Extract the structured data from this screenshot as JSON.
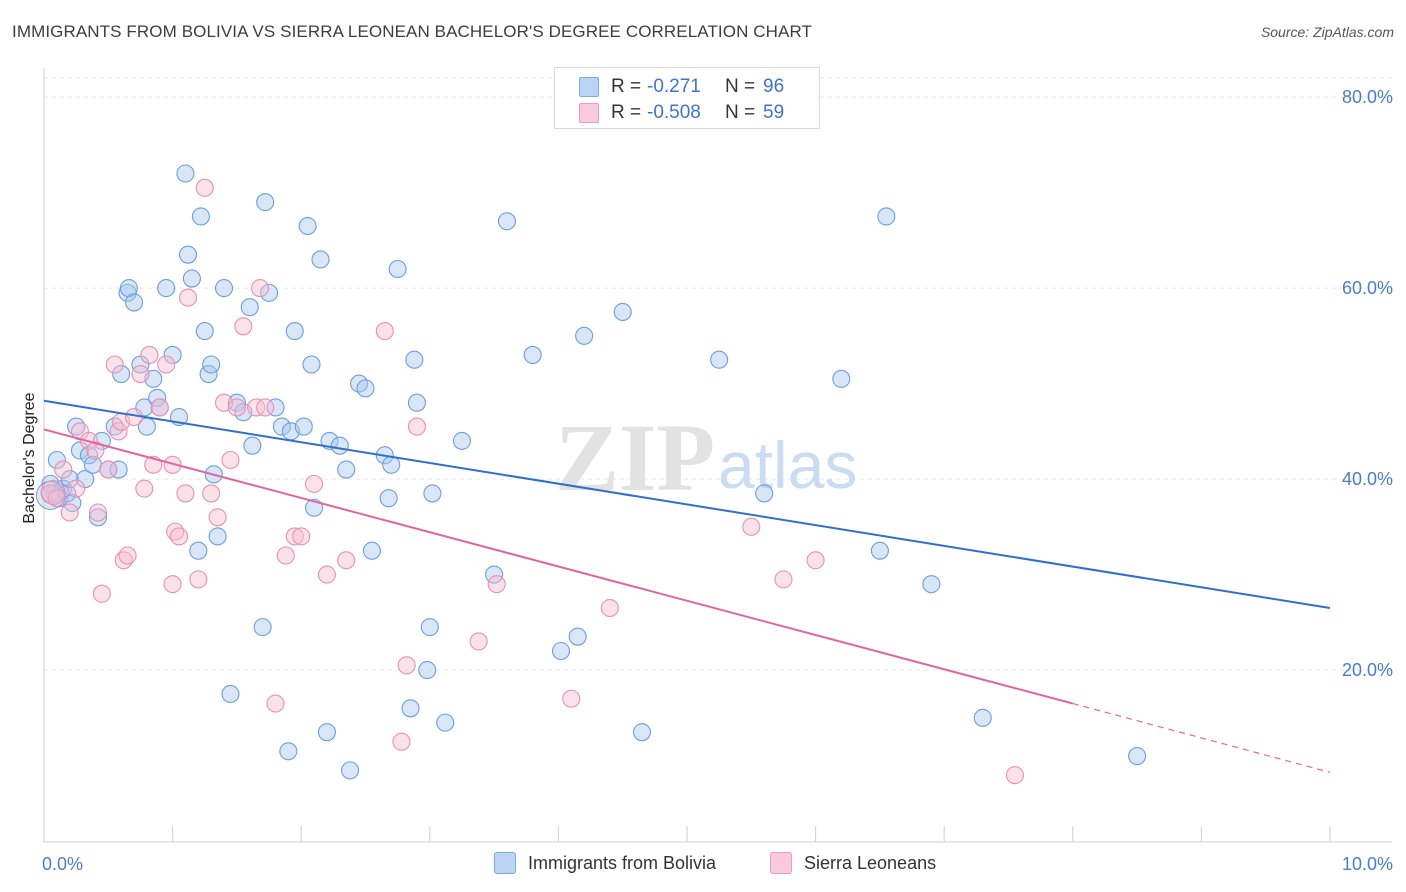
{
  "title": "IMMIGRANTS FROM BOLIVIA VS SIERRA LEONEAN BACHELOR'S DEGREE CORRELATION CHART",
  "source": "Source: ZipAtlas.com",
  "watermark_zip": "ZIP",
  "watermark_atlas": "atlas",
  "colors": {
    "blue_fill": "#a9c8f0",
    "blue_stroke": "#6b9ee0",
    "blue_line": "#2f6fce",
    "pink_fill": "#f7bcd0",
    "pink_stroke": "#e890b0",
    "pink_line": "#e0679a",
    "label_blue": "#4a7cc9"
  },
  "legend": {
    "rows": [
      {
        "r_label": "R =",
        "r_value": "-0.271",
        "n_label": "N =",
        "n_value": "96"
      },
      {
        "r_label": "R =",
        "r_value": "-0.508",
        "n_label": "N =",
        "n_value": "59"
      }
    ]
  },
  "bottom_legend": {
    "series1": "Immigrants from Bolivia",
    "series2": "Sierra Leoneans"
  },
  "chart_data": {
    "type": "scatter",
    "title": "IMMIGRANTS FROM BOLIVIA VS SIERRA LEONEAN BACHELOR'S DEGREE CORRELATION CHART",
    "xlabel": "",
    "ylabel": "Bachelor's Degree",
    "xlim": [
      0,
      10
    ],
    "ylim": [
      2,
      82
    ],
    "x_tick_labels": [
      "0.0%",
      "10.0%"
    ],
    "y_tick_labels": [
      "20.0%",
      "40.0%",
      "60.0%",
      "80.0%"
    ],
    "y_ticks": [
      20,
      40,
      60,
      80
    ],
    "series": [
      {
        "name": "Immigrants from Bolivia",
        "trend": {
          "x": [
            0,
            10
          ],
          "y": [
            48.2,
            26.5
          ]
        },
        "points": [
          [
            0.05,
            39.5
          ],
          [
            0.08,
            38.5
          ],
          [
            0.1,
            42.0
          ],
          [
            0.12,
            38.0
          ],
          [
            0.15,
            39.0
          ],
          [
            0.18,
            38.5
          ],
          [
            0.2,
            40.0
          ],
          [
            0.22,
            37.5
          ],
          [
            0.25,
            45.5
          ],
          [
            0.28,
            43.0
          ],
          [
            0.32,
            40.0
          ],
          [
            0.35,
            42.5
          ],
          [
            0.38,
            41.5
          ],
          [
            0.42,
            36.0
          ],
          [
            0.45,
            44.0
          ],
          [
            0.5,
            41.0
          ],
          [
            0.55,
            45.5
          ],
          [
            0.58,
            41.0
          ],
          [
            0.6,
            51.0
          ],
          [
            0.65,
            59.5
          ],
          [
            0.66,
            60.0
          ],
          [
            0.7,
            58.5
          ],
          [
            0.75,
            52.0
          ],
          [
            0.78,
            47.5
          ],
          [
            0.8,
            45.5
          ],
          [
            0.85,
            50.5
          ],
          [
            0.88,
            48.5
          ],
          [
            0.9,
            47.5
          ],
          [
            0.95,
            60.0
          ],
          [
            1.0,
            53.0
          ],
          [
            1.05,
            46.5
          ],
          [
            1.1,
            72.0
          ],
          [
            1.12,
            63.5
          ],
          [
            1.15,
            61.0
          ],
          [
            1.2,
            32.5
          ],
          [
            1.22,
            67.5
          ],
          [
            1.25,
            55.5
          ],
          [
            1.28,
            51.0
          ],
          [
            1.3,
            52.0
          ],
          [
            1.32,
            40.5
          ],
          [
            1.35,
            34.0
          ],
          [
            1.4,
            60.0
          ],
          [
            1.45,
            17.5
          ],
          [
            1.5,
            48.0
          ],
          [
            1.55,
            47.0
          ],
          [
            1.6,
            58.0
          ],
          [
            1.62,
            43.5
          ],
          [
            1.7,
            24.5
          ],
          [
            1.72,
            69.0
          ],
          [
            1.75,
            59.5
          ],
          [
            1.8,
            47.5
          ],
          [
            1.85,
            45.5
          ],
          [
            1.9,
            11.5
          ],
          [
            1.92,
            45.0
          ],
          [
            1.95,
            55.5
          ],
          [
            2.02,
            45.5
          ],
          [
            2.05,
            66.5
          ],
          [
            2.08,
            52.0
          ],
          [
            2.1,
            37.0
          ],
          [
            2.15,
            63.0
          ],
          [
            2.2,
            13.5
          ],
          [
            2.22,
            44.0
          ],
          [
            2.3,
            43.5
          ],
          [
            2.35,
            41.0
          ],
          [
            2.38,
            9.5
          ],
          [
            2.45,
            50.0
          ],
          [
            2.5,
            49.5
          ],
          [
            2.55,
            32.5
          ],
          [
            2.65,
            42.5
          ],
          [
            2.68,
            38.0
          ],
          [
            2.7,
            41.5
          ],
          [
            2.75,
            62.0
          ],
          [
            2.85,
            16.0
          ],
          [
            2.88,
            52.5
          ],
          [
            2.9,
            48.0
          ],
          [
            2.98,
            20.0
          ],
          [
            3.0,
            24.5
          ],
          [
            3.02,
            38.5
          ],
          [
            3.12,
            14.5
          ],
          [
            3.25,
            44.0
          ],
          [
            3.5,
            30.0
          ],
          [
            3.6,
            67.0
          ],
          [
            3.8,
            53.0
          ],
          [
            4.02,
            22.0
          ],
          [
            4.15,
            23.5
          ],
          [
            4.2,
            55.0
          ],
          [
            4.5,
            57.5
          ],
          [
            4.65,
            13.5
          ],
          [
            5.25,
            52.5
          ],
          [
            5.6,
            38.5
          ],
          [
            6.2,
            50.5
          ],
          [
            6.5,
            32.5
          ],
          [
            6.55,
            67.5
          ],
          [
            6.9,
            29.0
          ],
          [
            7.3,
            15.0
          ],
          [
            8.5,
            11.0
          ]
        ]
      },
      {
        "name": "Sierra Leoneans",
        "trend": {
          "x": [
            0,
            8.0
          ],
          "y": [
            45.2,
            16.5
          ]
        },
        "trend_dashed": {
          "x": [
            8.0,
            10
          ],
          "y": [
            16.5,
            9.3
          ]
        },
        "points": [
          [
            0.05,
            38.5
          ],
          [
            0.1,
            38.0
          ],
          [
            0.15,
            41.0
          ],
          [
            0.2,
            36.5
          ],
          [
            0.25,
            39.0
          ],
          [
            0.28,
            45.0
          ],
          [
            0.35,
            44.0
          ],
          [
            0.4,
            43.0
          ],
          [
            0.42,
            36.5
          ],
          [
            0.45,
            28.0
          ],
          [
            0.5,
            41.0
          ],
          [
            0.55,
            52.0
          ],
          [
            0.58,
            45.0
          ],
          [
            0.6,
            46.0
          ],
          [
            0.62,
            31.5
          ],
          [
            0.7,
            46.5
          ],
          [
            0.75,
            51.0
          ],
          [
            0.78,
            39.0
          ],
          [
            0.82,
            53.0
          ],
          [
            0.85,
            41.5
          ],
          [
            0.9,
            47.5
          ],
          [
            0.95,
            52.0
          ],
          [
            1.0,
            41.5
          ],
          [
            1.02,
            34.5
          ],
          [
            1.05,
            34.0
          ],
          [
            1.1,
            38.5
          ],
          [
            1.12,
            59.0
          ],
          [
            1.2,
            29.5
          ],
          [
            1.25,
            70.5
          ],
          [
            1.3,
            38.5
          ],
          [
            1.35,
            36.0
          ],
          [
            1.4,
            48.0
          ],
          [
            1.45,
            42.0
          ],
          [
            1.5,
            47.5
          ],
          [
            1.55,
            56.0
          ],
          [
            1.65,
            47.5
          ],
          [
            1.68,
            60.0
          ],
          [
            1.72,
            47.5
          ],
          [
            1.8,
            16.5
          ],
          [
            1.88,
            32.0
          ],
          [
            1.95,
            34.0
          ],
          [
            2.0,
            34.0
          ],
          [
            2.1,
            39.5
          ],
          [
            2.2,
            30.0
          ],
          [
            2.35,
            31.5
          ],
          [
            2.65,
            55.5
          ],
          [
            2.78,
            12.5
          ],
          [
            2.82,
            20.5
          ],
          [
            2.9,
            45.5
          ],
          [
            3.38,
            23.0
          ],
          [
            3.52,
            29.0
          ],
          [
            4.1,
            17.0
          ],
          [
            4.4,
            26.5
          ],
          [
            5.5,
            35.0
          ],
          [
            5.75,
            29.5
          ],
          [
            6.0,
            31.5
          ],
          [
            7.55,
            9.0
          ],
          [
            1.0,
            29.0
          ],
          [
            0.65,
            32.0
          ]
        ]
      }
    ]
  }
}
